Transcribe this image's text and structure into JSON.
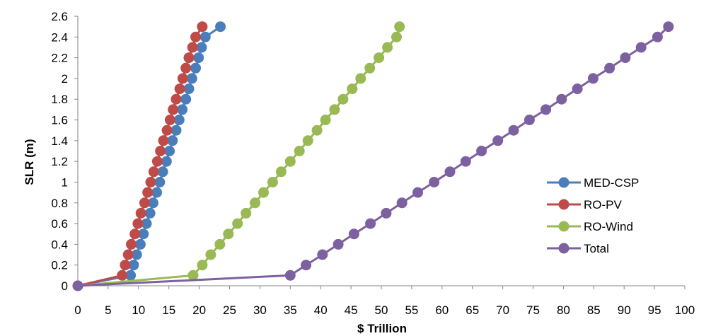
{
  "chart_data": {
    "type": "line",
    "title": "",
    "xlabel": "$ Trillion",
    "ylabel": "SLR (m)",
    "xlim": [
      0,
      100
    ],
    "ylim": [
      0,
      2.6
    ],
    "x_ticks": [
      "0",
      "5",
      "10",
      "15",
      "20",
      "25",
      "30",
      "35",
      "40",
      "45",
      "50",
      "55",
      "60",
      "65",
      "70",
      "75",
      "80",
      "85",
      "90",
      "95",
      "100"
    ],
    "y_ticks": [
      "0",
      "0.2",
      "0.4",
      "0.6",
      "0.8",
      "1",
      "1.2",
      "1.4",
      "1.6",
      "1.8",
      "2",
      "2.2",
      "2.4",
      "2.6"
    ],
    "grid": false,
    "legend_position": "right",
    "series": [
      {
        "name": "MED-CSP",
        "color": "#4a7ebb",
        "points": [
          [
            0,
            0
          ],
          [
            8.7,
            0.1
          ],
          [
            9.2,
            0.2
          ],
          [
            9.7,
            0.3
          ],
          [
            10.3,
            0.4
          ],
          [
            10.8,
            0.5
          ],
          [
            11.3,
            0.6
          ],
          [
            11.9,
            0.7
          ],
          [
            12.4,
            0.8
          ],
          [
            13.0,
            0.9
          ],
          [
            13.5,
            1.0
          ],
          [
            14.0,
            1.1
          ],
          [
            14.6,
            1.2
          ],
          [
            15.1,
            1.3
          ],
          [
            15.6,
            1.4
          ],
          [
            16.2,
            1.5
          ],
          [
            16.7,
            1.6
          ],
          [
            17.2,
            1.7
          ],
          [
            17.8,
            1.8
          ],
          [
            18.3,
            1.9
          ],
          [
            18.8,
            2.0
          ],
          [
            19.4,
            2.1
          ],
          [
            19.9,
            2.2
          ],
          [
            20.4,
            2.3
          ],
          [
            21.0,
            2.4
          ],
          [
            23.5,
            2.5
          ]
        ]
      },
      {
        "name": "RO-PV",
        "color": "#be4b48",
        "points": [
          [
            0,
            0
          ],
          [
            7.3,
            0.1
          ],
          [
            7.8,
            0.2
          ],
          [
            8.3,
            0.3
          ],
          [
            8.8,
            0.4
          ],
          [
            9.4,
            0.5
          ],
          [
            9.9,
            0.6
          ],
          [
            10.4,
            0.7
          ],
          [
            11.0,
            0.8
          ],
          [
            11.5,
            0.9
          ],
          [
            12.0,
            1.0
          ],
          [
            12.5,
            1.1
          ],
          [
            13.1,
            1.2
          ],
          [
            13.6,
            1.3
          ],
          [
            14.1,
            1.4
          ],
          [
            14.7,
            1.5
          ],
          [
            15.2,
            1.6
          ],
          [
            15.7,
            1.7
          ],
          [
            16.2,
            1.8
          ],
          [
            16.8,
            1.9
          ],
          [
            17.3,
            2.0
          ],
          [
            17.8,
            2.1
          ],
          [
            18.3,
            2.2
          ],
          [
            18.9,
            2.3
          ],
          [
            19.4,
            2.4
          ],
          [
            20.5,
            2.5
          ]
        ]
      },
      {
        "name": "RO-Wind",
        "color": "#98b954",
        "points": [
          [
            0,
            0
          ],
          [
            19.0,
            0.1
          ],
          [
            20.5,
            0.2
          ],
          [
            21.9,
            0.3
          ],
          [
            23.4,
            0.4
          ],
          [
            24.8,
            0.5
          ],
          [
            26.3,
            0.6
          ],
          [
            27.7,
            0.7
          ],
          [
            29.2,
            0.8
          ],
          [
            30.6,
            0.9
          ],
          [
            32.1,
            1.0
          ],
          [
            33.5,
            1.1
          ],
          [
            35.0,
            1.2
          ],
          [
            36.5,
            1.3
          ],
          [
            37.9,
            1.4
          ],
          [
            39.4,
            1.5
          ],
          [
            40.8,
            1.6
          ],
          [
            42.3,
            1.7
          ],
          [
            43.7,
            1.8
          ],
          [
            45.2,
            1.9
          ],
          [
            46.6,
            2.0
          ],
          [
            48.1,
            2.1
          ],
          [
            49.6,
            2.2
          ],
          [
            51.0,
            2.3
          ],
          [
            52.5,
            2.4
          ],
          [
            53.0,
            2.5
          ]
        ]
      },
      {
        "name": "Total",
        "color": "#7d60a0",
        "points": [
          [
            0,
            0
          ],
          [
            35.0,
            0.1
          ],
          [
            37.6,
            0.2
          ],
          [
            40.3,
            0.3
          ],
          [
            42.9,
            0.4
          ],
          [
            45.5,
            0.5
          ],
          [
            48.2,
            0.6
          ],
          [
            50.8,
            0.7
          ],
          [
            53.4,
            0.8
          ],
          [
            56.0,
            0.9
          ],
          [
            58.7,
            1.0
          ],
          [
            61.3,
            1.1
          ],
          [
            63.9,
            1.2
          ],
          [
            66.5,
            1.3
          ],
          [
            69.2,
            1.4
          ],
          [
            71.8,
            1.5
          ],
          [
            74.4,
            1.6
          ],
          [
            77.1,
            1.7
          ],
          [
            79.7,
            1.8
          ],
          [
            82.3,
            1.9
          ],
          [
            84.9,
            2.0
          ],
          [
            87.6,
            2.1
          ],
          [
            90.2,
            2.2
          ],
          [
            92.8,
            2.3
          ],
          [
            95.5,
            2.4
          ],
          [
            97.3,
            2.5
          ]
        ]
      }
    ]
  }
}
